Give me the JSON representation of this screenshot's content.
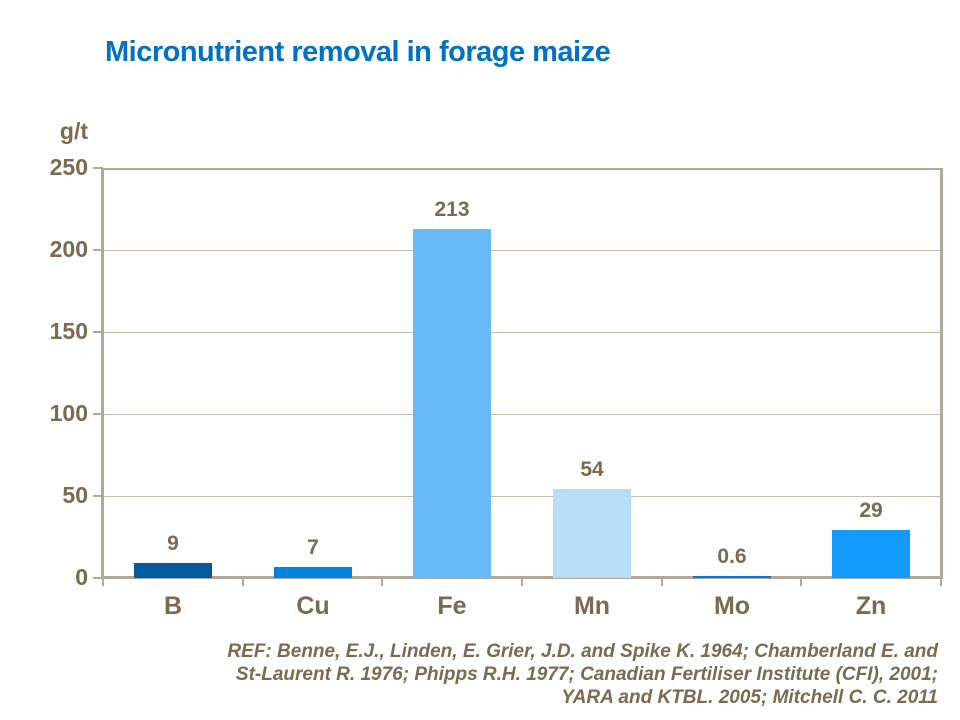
{
  "slide": {
    "title": "Micronutrient removal in forage maize",
    "title_color": "#0071C5",
    "reference_lines": [
      "REF: Benne, E.J., Linden, E. Grier, J.D. and Spike K. 1964; Chamberland  E. and",
      "St-Laurent R. 1976; Phipps R.H. 1977; Canadian Fertiliser Institute (CFI), 2001;",
      "YARA and KTBL. 2005; Mitchell C. C. 2011"
    ]
  },
  "chart_data": {
    "type": "bar",
    "title": "Micronutrient removal in forage maize",
    "xlabel": "",
    "ylabel": "g/t",
    "ylim": [
      0,
      250
    ],
    "yticks": [
      0,
      50,
      100,
      150,
      200,
      250
    ],
    "grid": true,
    "legend": false,
    "categories": [
      "B",
      "Cu",
      "Fe",
      "Mn",
      "Mo",
      "Zn"
    ],
    "values": [
      9,
      7,
      213,
      54,
      0.6,
      29
    ],
    "value_labels": [
      "9",
      "7",
      "213",
      "54",
      "0.6",
      "29"
    ],
    "bar_colors": [
      "#05599E",
      "#0084E0",
      "#66BBF8",
      "#B8DDF9",
      "#0C76C8",
      "#149AFB"
    ],
    "text_color": "#7C6A50",
    "axis_color": "#B3A79A",
    "grid_color": "#C6BBAC"
  }
}
